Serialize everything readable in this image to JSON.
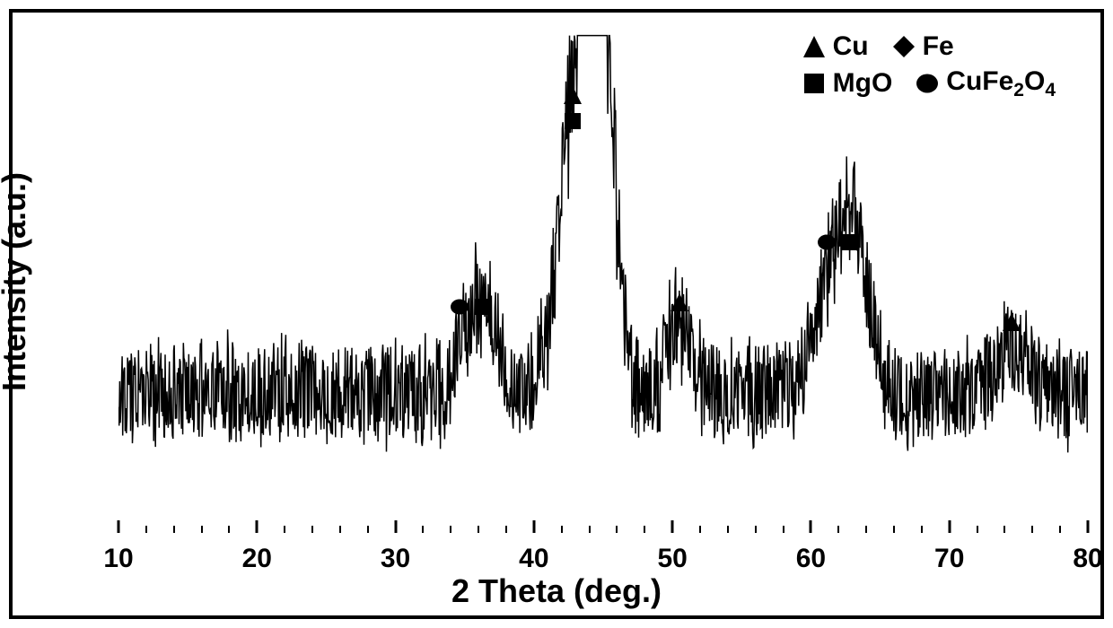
{
  "chart": {
    "type": "xrd-spectrum",
    "x_axis": {
      "label": "2 Theta (deg.)",
      "min": 10,
      "max": 80,
      "major_ticks": [
        10,
        20,
        30,
        40,
        50,
        60,
        70,
        80
      ],
      "minor_tick_step": 2,
      "label_fontsize": 36,
      "tick_fontsize": 30,
      "font_weight": "900"
    },
    "y_axis": {
      "label": "Intensity (a.u.)",
      "label_fontsize": 36,
      "font_weight": "900",
      "ticks_visible": false
    },
    "colors": {
      "line": "#000000",
      "background": "#ffffff",
      "border": "#000000",
      "text": "#000000"
    },
    "line_width": 1.5,
    "border_width": 4,
    "legend": {
      "position": "top-right",
      "fontsize": 30,
      "items": [
        {
          "marker": "triangle",
          "label": "Cu"
        },
        {
          "marker": "diamond",
          "label": "Fe"
        },
        {
          "marker": "square",
          "label": "MgO"
        },
        {
          "marker": "circle",
          "label_parts": [
            "CuFe",
            {
              "sub": "2"
            },
            "O",
            {
              "sub": "4"
            }
          ]
        }
      ]
    },
    "baseline_y": 0.28,
    "noise_amplitude": 0.11,
    "peaks": [
      {
        "x": 35.5,
        "height": 0.13,
        "width": 0.9,
        "markers": [
          "circle",
          "square"
        ]
      },
      {
        "x": 36.8,
        "height": 0.11,
        "width": 0.8,
        "markers": []
      },
      {
        "x": 42.8,
        "height": 0.5,
        "width": 1.1,
        "markers": [
          "triangle",
          "square"
        ],
        "stack": "vertical"
      },
      {
        "x": 44.7,
        "height": 0.82,
        "width": 1.0,
        "markers": [
          "diamond"
        ]
      },
      {
        "x": 50.5,
        "height": 0.14,
        "width": 0.9,
        "markers": [
          "triangle"
        ]
      },
      {
        "x": 62.0,
        "height": 0.26,
        "width": 1.4,
        "markers": [
          "circle",
          "square"
        ]
      },
      {
        "x": 63.2,
        "height": 0.17,
        "width": 1.0,
        "markers": []
      },
      {
        "x": 74.5,
        "height": 0.1,
        "width": 1.0,
        "markers": [
          "triangle"
        ]
      }
    ],
    "marker_size": 22
  }
}
